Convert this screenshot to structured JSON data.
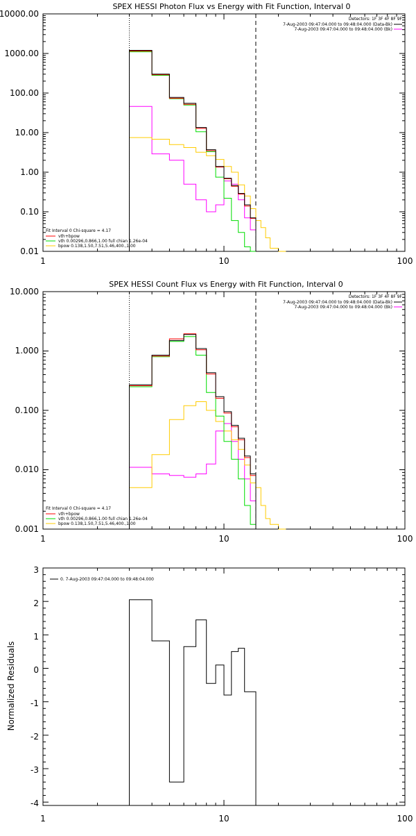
{
  "colors": {
    "data": "#000000",
    "total": "#ff0000",
    "vth": "#00dd00",
    "bpow": "#ffcc00",
    "bk": "#ff00ff",
    "axis": "#000000"
  },
  "chart_data": [
    {
      "type": "line",
      "title": "SPEX HESSI Photon Flux vs Energy with Fit Function, Interval 0",
      "xlabel": "",
      "ylabel": "",
      "xscale": "log",
      "yscale": "log",
      "xlim": [
        1,
        100
      ],
      "ylim": [
        0.01,
        10000
      ],
      "xticks": [
        "1",
        "10",
        "100"
      ],
      "yticks": [
        "0.01",
        "0.10",
        "1.00",
        "10.00",
        "100.00",
        "1000.00",
        "10000.00"
      ],
      "fit_range": [
        3,
        15
      ],
      "info_lines": [
        "Detectors: 1F 3F 4F 8F 9F",
        "7-Aug-2003 09:47:04.000 to 09:48:04.000 (Data-Bk)",
        "7-Aug-2003 09:47:04.000 to 09:48:04.000 (Bk)"
      ],
      "fit_text": [
        "Fit Interval 0   Chi-square = 4.17",
        "vth+bpow",
        "vth 0.00296,0.866,1.00   full chian 1.26e-04",
        "bpow 0.138,1.50,7.51,5.46,400.,1.00"
      ],
      "edges": [
        3,
        4,
        5,
        6,
        7,
        8,
        9,
        10,
        11,
        12,
        13,
        14,
        15,
        16,
        17,
        18,
        20,
        22
      ],
      "series": [
        {
          "key": "data",
          "values": [
            1200,
            300,
            78,
            55,
            13.5,
            3.7,
            1.4,
            0.7,
            0.46,
            0.29,
            0.15,
            0.07,
            null,
            null,
            null,
            null,
            null
          ]
        },
        {
          "key": "total",
          "values": [
            1150,
            290,
            74,
            52,
            12.8,
            3.5,
            1.35,
            0.68,
            0.44,
            0.28,
            0.14,
            0.068,
            null,
            null,
            null,
            null,
            null
          ]
        },
        {
          "key": "vth",
          "values": [
            1100,
            280,
            72,
            50,
            10.5,
            3.3,
            0.75,
            0.22,
            0.06,
            0.03,
            0.013,
            0.008,
            null,
            null,
            null,
            null,
            null
          ]
        },
        {
          "key": "bpow",
          "values": [
            7.5,
            6.8,
            5.0,
            4.2,
            3.2,
            2.6,
            2.1,
            1.4,
            1.0,
            0.48,
            0.25,
            0.12,
            0.06,
            0.04,
            0.022,
            0.012,
            0.01
          ]
        },
        {
          "key": "bk",
          "values": [
            46,
            2.9,
            2.0,
            0.5,
            0.2,
            0.1,
            0.15,
            0.6,
            0.5,
            0.2,
            0.07,
            0.035,
            null,
            null,
            null,
            null,
            null
          ]
        }
      ]
    },
    {
      "type": "line",
      "title": "SPEX HESSI Count Flux vs Energy with Fit Function, Interval 0",
      "xlabel": "",
      "ylabel": "",
      "xscale": "log",
      "yscale": "log",
      "xlim": [
        1,
        100
      ],
      "ylim": [
        0.001,
        10
      ],
      "xticks": [
        "1",
        "10",
        "100"
      ],
      "yticks": [
        "0.001",
        "0.010",
        "0.100",
        "1.000",
        "10.000"
      ],
      "fit_range": [
        3,
        15
      ],
      "info_lines": [
        "Detectors: 1F 3F 4F 8F 9F",
        "7-Aug-2003 09:47:04.000 to 09:48:04.000 (Data-Bk)",
        "7-Aug-2003 09:47:04.000 to 09:48:04.000 (Bk)"
      ],
      "fit_text": [
        "Fit Interval 0   Chi-square = 4.17",
        "vth+bpow",
        "vth 0.00296,0.866,1.00   full chian 1.26e-04",
        "bpow 0.138,1.50,7.51,5.46,400.,1.00"
      ],
      "edges": [
        3,
        4,
        5,
        6,
        7,
        8,
        9,
        10,
        11,
        12,
        13,
        14,
        15,
        16,
        17,
        18,
        20,
        22
      ],
      "series": [
        {
          "key": "data",
          "values": [
            0.27,
            0.85,
            1.5,
            1.9,
            1.1,
            0.43,
            0.17,
            0.095,
            0.056,
            0.034,
            0.017,
            0.0085,
            null,
            null,
            null,
            null,
            null
          ]
        },
        {
          "key": "total",
          "values": [
            0.26,
            0.82,
            1.6,
            1.95,
            1.05,
            0.41,
            0.16,
            0.09,
            0.053,
            0.032,
            0.016,
            0.008,
            null,
            null,
            null,
            null,
            null
          ]
        },
        {
          "key": "vth",
          "values": [
            0.25,
            0.8,
            1.45,
            1.75,
            0.85,
            0.2,
            0.08,
            0.03,
            0.015,
            0.007,
            0.0025,
            0.0012,
            null,
            null,
            null,
            null,
            null
          ]
        },
        {
          "key": "bpow",
          "values": [
            0.005,
            0.018,
            0.07,
            0.12,
            0.14,
            0.1,
            0.065,
            0.045,
            0.032,
            0.022,
            0.012,
            0.006,
            0.005,
            0.0025,
            0.0015,
            0.0012,
            0.001
          ]
        },
        {
          "key": "bk",
          "values": [
            0.011,
            0.0085,
            0.008,
            0.0075,
            0.0085,
            0.0125,
            0.045,
            0.06,
            0.03,
            0.015,
            0.007,
            0.003,
            null,
            null,
            null,
            null,
            null
          ]
        }
      ]
    },
    {
      "type": "line",
      "title": "",
      "xlabel": "",
      "ylabel": "Normalized Residuals",
      "xscale": "log",
      "yscale": "linear",
      "xlim": [
        1,
        100
      ],
      "ylim": [
        -4.1,
        3
      ],
      "xticks": [
        "1",
        "10",
        "100"
      ],
      "yticks": [
        "-4",
        "-3",
        "-2",
        "-1",
        "0",
        "1",
        "2",
        "3"
      ],
      "legend": "0.  7-Aug-2003 09:47:04.000 to 09:48:04.000",
      "edges": [
        3,
        4,
        5,
        6,
        7,
        8,
        9,
        10,
        11,
        12,
        13,
        14,
        15
      ],
      "series": [
        {
          "key": "data",
          "values": [
            2.05,
            0.82,
            -3.4,
            0.65,
            1.45,
            -0.45,
            0.1,
            -0.8,
            0.5,
            0.6,
            -0.7,
            -0.7
          ]
        }
      ]
    }
  ]
}
